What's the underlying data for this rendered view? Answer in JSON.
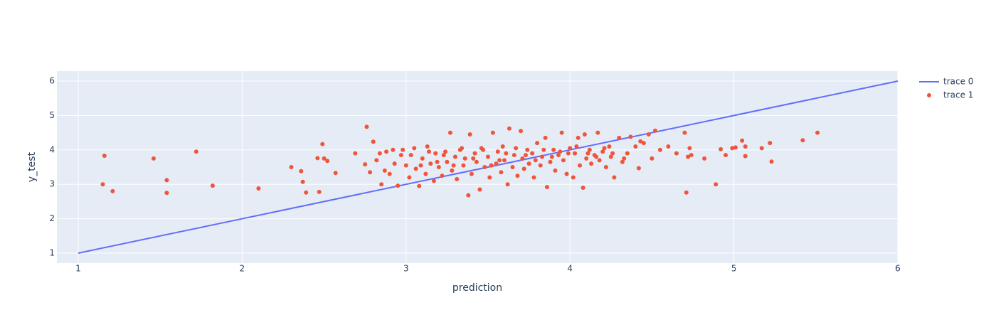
{
  "chart_data": {
    "type": "scatter",
    "x_label": "prediction",
    "y_label": "y_test",
    "xlim": [
      0.87,
      6
    ],
    "ylim": [
      0.71,
      6.29
    ],
    "xticks": [
      1,
      2,
      3,
      4,
      5,
      6
    ],
    "yticks": [
      1,
      2,
      3,
      4,
      5,
      6
    ],
    "grid": true,
    "legend": "right",
    "series": [
      {
        "name": "trace 0",
        "mode": "lines",
        "color": "#636efa",
        "x": [
          1,
          6
        ],
        "y": [
          1,
          6
        ]
      },
      {
        "name": "trace 1",
        "mode": "markers",
        "color": "#ef553b",
        "x": [
          1.15,
          1.16,
          1.21,
          1.46,
          1.54,
          1.54,
          1.72,
          1.82,
          2.1,
          2.3,
          2.36,
          2.37,
          2.39,
          2.46,
          2.47,
          2.49,
          2.5,
          2.52,
          2.57,
          2.69,
          2.75,
          2.76,
          2.78,
          2.8,
          2.82,
          2.85,
          2.88,
          2.9,
          2.92,
          2.95,
          2.97,
          3.0,
          3.02,
          3.05,
          3.06,
          3.08,
          3.1,
          3.12,
          3.13,
          3.15,
          3.17,
          3.18,
          3.2,
          3.22,
          3.24,
          3.25,
          3.27,
          3.28,
          3.3,
          3.31,
          3.33,
          3.35,
          3.36,
          3.38,
          3.39,
          3.4,
          3.42,
          3.43,
          3.45,
          3.46,
          3.48,
          3.5,
          3.51,
          3.53,
          3.55,
          3.56,
          3.58,
          3.59,
          3.6,
          3.62,
          3.63,
          3.65,
          3.66,
          3.68,
          3.7,
          3.71,
          3.72,
          3.74,
          3.75,
          3.77,
          3.78,
          3.8,
          3.82,
          3.83,
          3.85,
          3.86,
          3.88,
          3.9,
          3.91,
          3.93,
          3.95,
          3.96,
          3.98,
          4.0,
          4.02,
          4.03,
          4.05,
          4.06,
          4.08,
          4.09,
          4.1,
          4.12,
          4.13,
          4.15,
          4.17,
          4.18,
          4.2,
          4.22,
          4.24,
          4.25,
          4.27,
          4.3,
          4.32,
          4.35,
          2.87,
          2.93,
          2.98,
          3.03,
          3.09,
          3.14,
          3.19,
          3.23,
          3.29,
          3.34,
          3.41,
          3.47,
          3.52,
          3.57,
          3.61,
          3.67,
          3.73,
          3.79,
          3.84,
          3.89,
          3.94,
          3.99,
          4.04,
          4.11,
          4.16,
          4.21,
          4.26,
          4.33,
          4.37,
          2.84,
          4.4,
          4.42,
          4.43,
          4.45,
          4.48,
          4.5,
          4.52,
          4.55,
          4.6,
          4.65,
          4.7,
          4.71,
          4.72,
          4.73,
          4.74,
          4.82,
          4.89,
          4.92,
          4.95,
          4.99,
          5.01,
          5.05,
          5.07,
          5.07,
          5.17,
          5.22,
          5.23,
          5.42,
          5.51
        ],
        "y": [
          3.0,
          3.83,
          2.8,
          3.75,
          3.12,
          2.75,
          3.95,
          2.96,
          2.88,
          3.5,
          3.38,
          3.07,
          2.76,
          3.76,
          2.78,
          4.17,
          3.75,
          3.68,
          3.33,
          3.9,
          3.58,
          4.67,
          3.35,
          4.24,
          3.7,
          3.0,
          3.95,
          3.3,
          4.0,
          2.96,
          3.85,
          3.55,
          3.2,
          4.05,
          3.45,
          2.95,
          3.75,
          3.3,
          4.1,
          3.6,
          3.1,
          3.9,
          3.5,
          3.25,
          3.95,
          3.65,
          4.5,
          3.4,
          3.8,
          3.15,
          4.0,
          3.55,
          3.75,
          2.68,
          4.45,
          3.3,
          3.9,
          3.65,
          2.85,
          4.05,
          3.5,
          3.8,
          3.2,
          4.5,
          3.6,
          3.95,
          3.35,
          4.1,
          3.7,
          3.0,
          4.62,
          3.5,
          3.85,
          3.25,
          4.55,
          3.75,
          3.45,
          4.0,
          3.6,
          3.9,
          3.2,
          4.2,
          3.55,
          3.8,
          4.35,
          2.92,
          3.65,
          4.0,
          3.4,
          3.85,
          4.5,
          3.7,
          3.3,
          4.05,
          3.2,
          3.9,
          4.35,
          3.55,
          2.9,
          4.45,
          3.75,
          4.0,
          3.6,
          3.85,
          4.5,
          3.7,
          3.95,
          3.5,
          4.1,
          3.8,
          3.2,
          4.35,
          3.65,
          3.9,
          3.4,
          3.6,
          4.0,
          3.85,
          3.55,
          3.95,
          3.65,
          3.85,
          3.55,
          4.05,
          3.75,
          4.0,
          3.55,
          3.7,
          3.9,
          4.05,
          3.85,
          3.7,
          4.0,
          3.8,
          3.95,
          3.9,
          4.1,
          3.9,
          3.8,
          4.05,
          3.9,
          3.75,
          4.38,
          3.9,
          4.1,
          3.47,
          4.25,
          4.2,
          4.45,
          3.75,
          4.56,
          4.0,
          4.1,
          3.9,
          4.5,
          2.76,
          3.8,
          4.05,
          3.85,
          3.75,
          3.0,
          4.02,
          3.85,
          4.05,
          4.07,
          4.27,
          3.82,
          4.1,
          4.05,
          4.2,
          3.66,
          4.28,
          4.5
        ]
      }
    ]
  }
}
